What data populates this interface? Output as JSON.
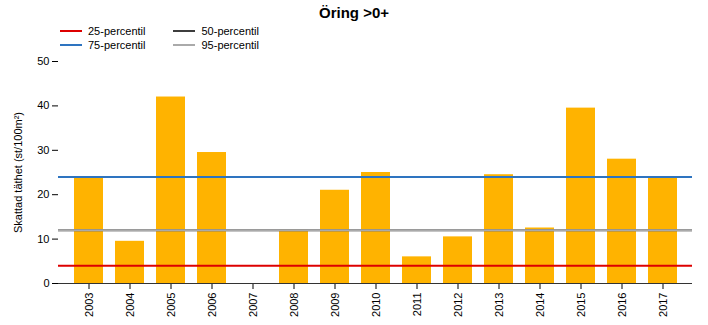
{
  "chart_data": {
    "type": "bar",
    "title": "Öring >0+",
    "ylabel": "Skattad täthet (st/100m²)",
    "categories": [
      "2003",
      "2004",
      "2005",
      "2006",
      "2007",
      "2008",
      "2009",
      "2010",
      "2011",
      "2012",
      "2013",
      "2014",
      "2015",
      "2016",
      "2017"
    ],
    "values": [
      24.0,
      9.5,
      42.0,
      29.5,
      0.0,
      12.0,
      21.0,
      25.0,
      6.0,
      10.5,
      24.5,
      12.5,
      39.5,
      28.0,
      24.0
    ],
    "color": "#FFB300",
    "ylim": [
      0,
      50
    ],
    "yticks": [
      0,
      10,
      20,
      30,
      40,
      50
    ],
    "grid": false,
    "legend": "upper left",
    "reference_lines": [
      {
        "name": "25-percentil",
        "value": 4.0,
        "color": "#DD0000"
      },
      {
        "name": "50-percentil",
        "value": 12.0,
        "color": "#3D3D3D"
      },
      {
        "name": "75-percentil",
        "value": 24.0,
        "color": "#2E74C0"
      },
      {
        "name": "95-percentil",
        "value": 12.0,
        "color": "#AAAAAA"
      }
    ]
  }
}
